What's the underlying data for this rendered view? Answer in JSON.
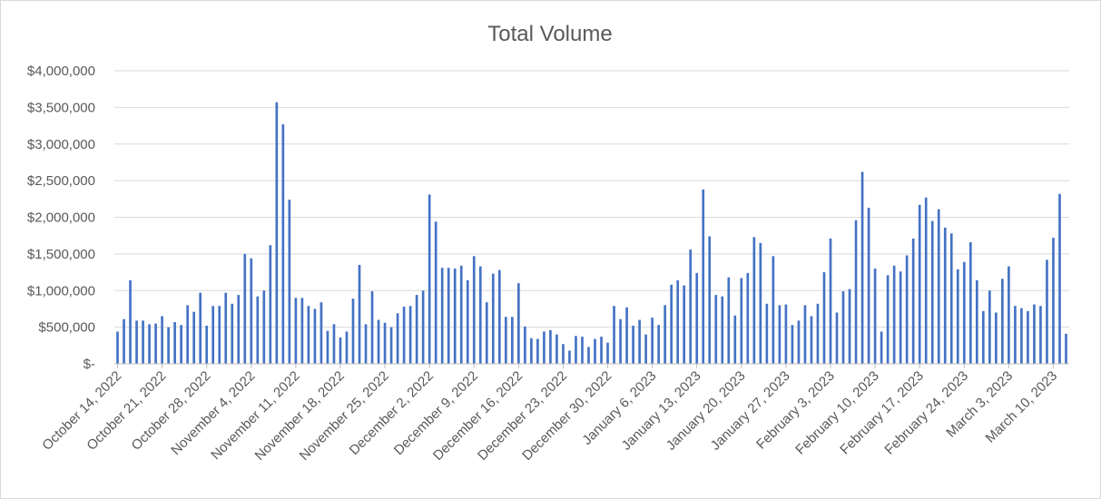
{
  "chart_data": {
    "type": "bar",
    "title": "Total Volume",
    "xlabel": "",
    "ylabel": "",
    "ylim": [
      0,
      4000000
    ],
    "yticks": [
      0,
      500000,
      1000000,
      1500000,
      2000000,
      2500000,
      3000000,
      3500000,
      4000000
    ],
    "ytick_labels": [
      "$-",
      "$500,000",
      "$1,000,000",
      "$1,500,000",
      "$2,000,000",
      "$2,500,000",
      "$3,000,000",
      "$3,500,000",
      "$4,000,000"
    ],
    "grid": true,
    "legend": "none",
    "bar_color": "#4472c4",
    "x_tick_labels": [
      "October 14, 2022",
      "October 21, 2022",
      "October 28, 2022",
      "November 4, 2022",
      "November 11, 2022",
      "November 18, 2022",
      "November 25, 2022",
      "December 2, 2022",
      "December 9, 2022",
      "December 16, 2022",
      "December 23, 2022",
      "December 30, 2022",
      "January 6, 2023",
      "January 13, 2023",
      "January 20, 2023",
      "January 27, 2023",
      "February 3, 2023",
      "February 10, 2023",
      "February 17, 2023",
      "February 24, 2023",
      "March 3, 2023",
      "March 10, 2023"
    ],
    "x_start": "October 14, 2022",
    "x_end": "March 12, 2023",
    "values": [
      440000,
      610000,
      1140000,
      590000,
      590000,
      540000,
      550000,
      650000,
      500000,
      570000,
      530000,
      800000,
      710000,
      970000,
      520000,
      790000,
      790000,
      970000,
      820000,
      940000,
      1500000,
      1440000,
      920000,
      1000000,
      1620000,
      3570000,
      3270000,
      2240000,
      900000,
      900000,
      790000,
      750000,
      840000,
      450000,
      540000,
      360000,
      440000,
      890000,
      1350000,
      540000,
      990000,
      600000,
      560000,
      500000,
      690000,
      780000,
      790000,
      940000,
      1000000,
      2310000,
      1940000,
      1310000,
      1310000,
      1300000,
      1340000,
      1140000,
      1470000,
      1330000,
      840000,
      1230000,
      1280000,
      640000,
      640000,
      1100000,
      510000,
      350000,
      340000,
      440000,
      460000,
      400000,
      270000,
      180000,
      380000,
      370000,
      230000,
      340000,
      370000,
      290000,
      790000,
      610000,
      770000,
      520000,
      600000,
      400000,
      630000,
      530000,
      800000,
      1080000,
      1140000,
      1070000,
      1560000,
      1240000,
      2380000,
      1740000,
      940000,
      920000,
      1180000,
      660000,
      1170000,
      1240000,
      1730000,
      1650000,
      820000,
      1470000,
      800000,
      810000,
      530000,
      590000,
      800000,
      650000,
      820000,
      1250000,
      1710000,
      700000,
      990000,
      1020000,
      1960000,
      2620000,
      2130000,
      1300000,
      440000,
      1210000,
      1340000,
      1260000,
      1480000,
      1710000,
      2170000,
      2270000,
      1950000,
      2110000,
      1860000,
      1780000,
      1290000,
      1390000,
      1660000,
      1140000,
      720000,
      1000000,
      700000,
      1160000,
      1330000,
      790000,
      760000,
      720000,
      810000,
      790000,
      1420000,
      1720000,
      2320000,
      410000
    ]
  }
}
